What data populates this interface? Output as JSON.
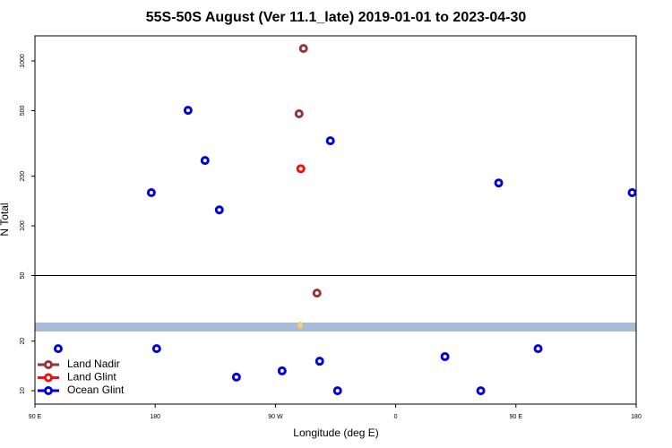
{
  "chart_data": {
    "type": "scatter",
    "title": "55S-50S August (Ver 11.1_late)   2019-01-01 to 2023-04-30",
    "x_label": "Longitude (deg E)",
    "y_label": "N Total",
    "log_y": true,
    "grid": false,
    "legend": "lower left",
    "hline": 50,
    "xlim": [
      90,
      540
    ],
    "xticks": [
      {
        "value": 90,
        "label": "90 E"
      },
      180,
      {
        "value": 270,
        "label": "90 W"
      },
      {
        "value": 360,
        "label": "0"
      },
      {
        "value": 450,
        "label": "90 E"
      },
      {
        "value": 540,
        "label": "180"
      }
    ],
    "ylim": [
      8.3,
      1420
    ],
    "yticks": [
      10,
      20,
      50,
      100,
      200,
      500,
      1000
    ],
    "series": [
      {
        "name": "Land Nadir",
        "color": "#993333",
        "x": [
          291,
          287.7,
          301.1
        ],
        "values": [
          1190,
          478,
          39.1
        ]
      },
      {
        "name": "Land Glint",
        "color": "#ee1111",
        "x": [
          289
        ],
        "values": [
          222
        ]
      },
      {
        "name": "Ocean Glint",
        "color": "#0000dd",
        "x": [
          204.6,
          217.3,
          177.1,
          228.0,
          311.1,
          437.1,
          537.0,
          107.4,
          181.1,
          240.8,
          275.0,
          303.1,
          316.5,
          396.9,
          423.7,
          466.6
        ],
        "values": [
          502,
          249,
          159,
          125,
          328,
          182,
          159,
          18.0,
          18.0,
          12.1,
          13.2,
          15.1,
          10,
          16.1,
          10,
          18.0
        ]
      }
    ]
  }
}
